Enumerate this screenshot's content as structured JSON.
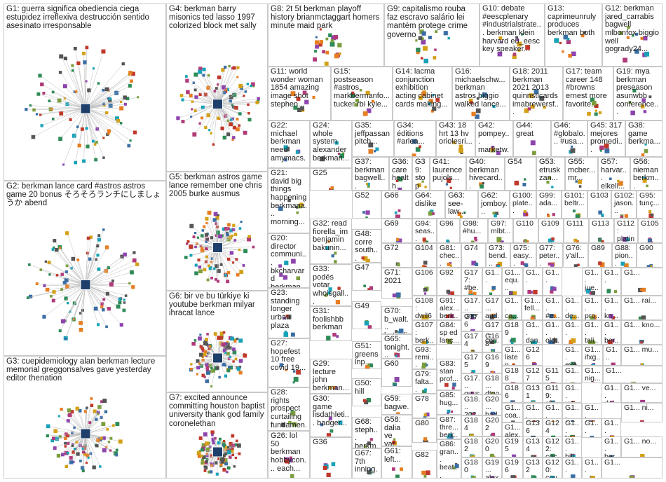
{
  "groups": [
    {
      "id": "G1",
      "label": "G1: guerra significa obediencia ciega estupidez irreflexiva destrucción sentido asesinato irresponsable"
    },
    {
      "id": "G2",
      "label": "G2: berkman lance card #astros astros game 20 bonus そろそろランチにしましょうか abend"
    },
    {
      "id": "G3",
      "label": "G3: cuepidemiology alan berkman lecture memorial greggonsalves gave yesterday editor thenation"
    },
    {
      "id": "G4",
      "label": "G4: berkman barry misonics ted lasso 1997 colorized block met sally"
    },
    {
      "id": "G5",
      "label": "G5: berkman astros game lance remember one chris 2005 burke ausmus"
    },
    {
      "id": "G6",
      "label": "G6: bir ve bu türkiye ki youtube berkman milyar ihracat lance"
    },
    {
      "id": "G7",
      "label": "G7: excited announce committing houston baptist university thank god family coronelethan"
    },
    {
      "id": "G8",
      "label": "G8: 2t 5t berkman playoff history brianmctaggart homers minute maid park"
    },
    {
      "id": "G9",
      "label": "G9: capitalismo rouba faz escravo salário lei mantém protege crime governo"
    },
    {
      "id": "G10",
      "label": "G10: debate #eescplenary #industrialstrate... berkman klein harvard eu_eesc key speaker..."
    },
    {
      "id": "G13",
      "label": "G13: caprimeunruly produces berkman both"
    },
    {
      "id": "G12",
      "label": "G12: berkman jared_carrabis bagwell mlbonfox biggio well gogrady24..."
    },
    {
      "id": "G11",
      "label": "G11: world wonder woman 1854 amazing image shot stephen..."
    },
    {
      "id": "G15",
      "label": "G15: postseason #astros markbermanfo... tucker rbi kyle..."
    },
    {
      "id": "G14",
      "label": "G14: lacma conjunction exhibition acting cabinet cards making..."
    },
    {
      "id": "G16",
      "label": "G16: michaelschw... berkman astros biggio walked lance..."
    },
    {
      "id": "G18",
      "label": "G18: 2011 berkman 2021 2013 quinnstlcards imabrewersf..."
    },
    {
      "id": "G17",
      "label": "G17: team career 148 #browns ernest more favorite..."
    },
    {
      "id": "G19",
      "label": "G19: mya berkman preseason asunwbb conference..."
    },
    {
      "id": "G22",
      "label": "G22: michael berkman need amymacs..."
    },
    {
      "id": "G24",
      "label": "G24: whole system alexander berkman..."
    },
    {
      "id": "G35",
      "label": "G35: jeffpassan pitch..."
    },
    {
      "id": "G34",
      "label": "G34: éditions #arlea..."
    },
    {
      "id": "G43",
      "label": "G43: 18 hrt 13 hv oriolesri..."
    },
    {
      "id": "G42",
      "label": "G42: pompey... marketw..."
    },
    {
      "id": "G44",
      "label": "G44: great"
    },
    {
      "id": "G46",
      "label": "G46: #globalo... #usa..."
    },
    {
      "id": "G45",
      "label": "G45: 317 mejores promedi..."
    },
    {
      "id": "G38",
      "label": "G38: game berkma..."
    },
    {
      "id": "G25",
      "label": "G25"
    },
    {
      "id": "G37",
      "label": "G37: berkman bagwell..."
    },
    {
      "id": "G39",
      "label": "G39: stop"
    },
    {
      "id": "G41",
      "label": "G41: laurence pujols..."
    },
    {
      "id": "G40",
      "label": "G40: berkman hivecard..."
    },
    {
      "id": "G54",
      "label": "G54"
    },
    {
      "id": "G53",
      "label": "G53: etrusk zan..."
    },
    {
      "id": "G55",
      "label": "G55: mcber... mr..."
    },
    {
      "id": "G57",
      "label": "G57: harvar... elkell..."
    },
    {
      "id": "G56",
      "label": "G56: nieman berkm..."
    },
    {
      "id": "G36",
      "label": "G36: care health..."
    },
    {
      "id": "G21",
      "label": "G21: david big things happening berkmana... morning..."
    },
    {
      "id": "G52",
      "label": "G52"
    },
    {
      "id": "G66",
      "label": "G66"
    },
    {
      "id": "G64",
      "label": "G64: dislike"
    },
    {
      "id": "G63",
      "label": "G63: see-law..."
    },
    {
      "id": "G62",
      "label": "G62: jomboy..."
    },
    {
      "id": "G100",
      "label": "G100: plate..."
    },
    {
      "id": "G99",
      "label": "G99: ada..."
    },
    {
      "id": "G101",
      "label": "G101: beltr..."
    },
    {
      "id": "G103",
      "label": "G103"
    },
    {
      "id": "G102",
      "label": "G102: jason..."
    },
    {
      "id": "G95",
      "label": "G95: tunç..."
    },
    {
      "id": "G32",
      "label": "G32: read fiorella_im benjamin bakunin..."
    },
    {
      "id": "G48",
      "label": "G48: corre south..."
    },
    {
      "id": "G69",
      "label": "G69"
    },
    {
      "id": "G94",
      "label": "G94: seas..."
    },
    {
      "id": "G96",
      "label": "G96"
    },
    {
      "id": "G98",
      "label": "G98: #hu..."
    },
    {
      "id": "G97",
      "label": "G97: mlbt..."
    },
    {
      "id": "G110",
      "label": "G110"
    },
    {
      "id": "G109",
      "label": "G109"
    },
    {
      "id": "G111",
      "label": "G111"
    },
    {
      "id": "G113",
      "label": "G113"
    },
    {
      "id": "G112",
      "label": "G112: platin..."
    },
    {
      "id": "G105",
      "label": "G105"
    },
    {
      "id": "G20",
      "label": "G20: director communi... bkcharvard berkman..."
    },
    {
      "id": "G72",
      "label": "G72"
    },
    {
      "id": "G104",
      "label": "G104"
    },
    {
      "id": "G81",
      "label": "G81: chec..."
    },
    {
      "id": "G74",
      "label": "G74"
    },
    {
      "id": "G73",
      "label": "G73: bend..."
    },
    {
      "id": "G75",
      "label": "G75: easy..."
    },
    {
      "id": "G77",
      "label": "G77: peter..."
    },
    {
      "id": "G76",
      "label": "G76: y'all..."
    },
    {
      "id": "G89",
      "label": "G89"
    },
    {
      "id": "G88",
      "label": "G88: pion..."
    },
    {
      "id": "G90",
      "label": "G90"
    },
    {
      "id": "G33",
      "label": "G33: podés votar whoisgall..."
    },
    {
      "id": "G47",
      "label": "G47"
    },
    {
      "id": "G71",
      "label": "G71: 2021"
    },
    {
      "id": "G106",
      "label": "G106"
    },
    {
      "id": "G92",
      "label": "G92"
    },
    {
      "id": "G177",
      "label": "G177: #be..."
    },
    {
      "id": "G1a",
      "label": "G1..."
    },
    {
      "id": "G1b",
      "label": "G1... equ..."
    },
    {
      "id": "G1c",
      "label": "G1..."
    },
    {
      "id": "G1d",
      "label": "G1..."
    },
    {
      "id": "G1e",
      "label": "G1... jue..."
    },
    {
      "id": "G1f",
      "label": "G1..."
    },
    {
      "id": "G1g",
      "label": "G1..."
    },
    {
      "id": "G23",
      "label": "G23: standing longer urban plaza"
    },
    {
      "id": "G108",
      "label": "G108: dwil6"
    },
    {
      "id": "G91",
      "label": "G91: alex... berk..."
    },
    {
      "id": "G17a",
      "label": "G17... one"
    },
    {
      "id": "G17b",
      "label": "G17... aud..."
    },
    {
      "id": "G1h",
      "label": "G1... ca..."
    },
    {
      "id": "G1i",
      "label": "G1... fell..."
    },
    {
      "id": "G1j",
      "label": "G1... #e..."
    },
    {
      "id": "G1k",
      "label": "G1... de..."
    },
    {
      "id": "G1l",
      "label": "G1... pro..."
    },
    {
      "id": "G1m",
      "label": "G1... kn..."
    },
    {
      "id": "G1n",
      "label": "G1... rai..."
    },
    {
      "id": "G31",
      "label": "G31: foolishbb berkman"
    },
    {
      "id": "G49",
      "label": "G49"
    },
    {
      "id": "G70",
      "label": "G70: b_walt... betonli..."
    },
    {
      "id": "G107",
      "label": "G107: berk..."
    },
    {
      "id": "G84",
      "label": "G84: sp ed lanc..."
    },
    {
      "id": "G176",
      "label": "G176"
    },
    {
      "id": "G17c",
      "label": "G17... con..."
    },
    {
      "id": "G189",
      "label": "G189"
    },
    {
      "id": "G1o",
      "label": "G1... dan..."
    },
    {
      "id": "G1p",
      "label": "G1... old..."
    },
    {
      "id": "G1q",
      "label": "G1..."
    },
    {
      "id": "G1r",
      "label": "G1... tali..."
    },
    {
      "id": "G1s",
      "label": "G1... ber..."
    },
    {
      "id": "G1t",
      "label": "G1... kno..."
    },
    {
      "id": "G27",
      "label": "G27: hopefest 10 free covid 19..."
    },
    {
      "id": "G65",
      "label": "G65: tonight..."
    },
    {
      "id": "G93",
      "label": "G93: remi..."
    },
    {
      "id": "G174",
      "label": "G174"
    },
    {
      "id": "G168",
      "label": "G168"
    },
    {
      "id": "G1u",
      "label": "G1... listen"
    },
    {
      "id": "G126",
      "label": "G126"
    },
    {
      "id": "G1v",
      "label": "G1... eye..."
    },
    {
      "id": "G1w",
      "label": "G1... ifxg..."
    },
    {
      "id": "G1x",
      "label": "G1..."
    },
    {
      "id": "G1y",
      "label": "G1... mu..."
    },
    {
      "id": "G51",
      "label": "G51: greens lnp..."
    },
    {
      "id": "G175",
      "label": "G175"
    },
    {
      "id": "G169",
      "label": "G169"
    },
    {
      "id": "G188",
      "label": "G188"
    },
    {
      "id": "G127",
      "label": "G127"
    },
    {
      "id": "G115",
      "label": "G115"
    },
    {
      "id": "G1z",
      "label": "G1..."
    },
    {
      "id": "G1aa",
      "label": "G1... nig..."
    },
    {
      "id": "G1ab",
      "label": "G1..."
    },
    {
      "id": "G29",
      "label": "G29: lecture john berkman..."
    },
    {
      "id": "G60",
      "label": "G60"
    },
    {
      "id": "G79",
      "label": "G79: falta..."
    },
    {
      "id": "G83",
      "label": "G83: stan prof..."
    },
    {
      "id": "G17d",
      "label": "G17... guys"
    },
    {
      "id": "G18a",
      "label": "G18... dtgo..."
    },
    {
      "id": "G186",
      "label": "G186"
    },
    {
      "id": "G131",
      "label": "G131"
    },
    {
      "id": "G119",
      "label": "G119: cf..."
    },
    {
      "id": "G1ac",
      "label": "G1... urt..."
    },
    {
      "id": "G1ad",
      "label": "G1... dal..."
    },
    {
      "id": "G1ae",
      "label": "G1... ve..."
    },
    {
      "id": "G28",
      "label": "G28: rights prospect curtailing fundamen..."
    },
    {
      "id": "G50",
      "label": "G50: hill"
    },
    {
      "id": "G59",
      "label": "G59: bagwe..."
    },
    {
      "id": "G78",
      "label": "G78"
    },
    {
      "id": "G85",
      "label": "G85: hug..."
    },
    {
      "id": "G18b",
      "label": "G18... 202..."
    },
    {
      "id": "G20a",
      "label": "G20... bad..."
    },
    {
      "id": "G1af",
      "label": "G1... coa..."
    },
    {
      "id": "G1ag",
      "label": "G1... right..."
    },
    {
      "id": "G1ah",
      "label": "G1..."
    },
    {
      "id": "G1ai",
      "label": "G1... cu..."
    },
    {
      "id": "G1aj",
      "label": "G1... sh..."
    },
    {
      "id": "G1ak",
      "label": "G1... ni..."
    },
    {
      "id": "G30",
      "label": "G30: game lisdathleti... badger..."
    },
    {
      "id": "G68",
      "label": "G68: steph... berkm..."
    },
    {
      "id": "G58",
      "label": "G58: dalia ve var..."
    },
    {
      "id": "G80",
      "label": "G80"
    },
    {
      "id": "G87",
      "label": "G87: thre... berk..."
    },
    {
      "id": "G184",
      "label": "G184"
    },
    {
      "id": "G202",
      "label": "G202"
    },
    {
      "id": "G1al",
      "label": "G1... alex..."
    },
    {
      "id": "G136",
      "label": "G136"
    },
    {
      "id": "G124",
      "label": "G124"
    },
    {
      "id": "G1am",
      "label": "G1... lov..."
    },
    {
      "id": "G1an",
      "label": "G1..."
    },
    {
      "id": "G1ao",
      "label": "G1..."
    },
    {
      "id": "G26",
      "label": "G26: lol 50 berkman hobbycon... each..."
    },
    {
      "id": "G36b",
      "label": "G36"
    },
    {
      "id": "G67",
      "label": "G67: 7th inning..."
    },
    {
      "id": "G61",
      "label": "G61: left..."
    },
    {
      "id": "G82",
      "label": "G82"
    },
    {
      "id": "G86",
      "label": "G86: gran... beat..."
    },
    {
      "id": "G182",
      "label": "G182"
    },
    {
      "id": "G200",
      "label": "G200"
    },
    {
      "id": "G195",
      "label": "G195"
    },
    {
      "id": "G134",
      "label": "G134"
    },
    {
      "id": "G122",
      "label": "G122: coco..."
    },
    {
      "id": "G1ap",
      "label": "G1... bill..."
    },
    {
      "id": "G1aq",
      "label": "G1... ber..."
    },
    {
      "id": "G1ar",
      "label": "G1... no..."
    },
    {
      "id": "G180",
      "label": "G180"
    },
    {
      "id": "G19a",
      "label": "G19... alex..."
    },
    {
      "id": "G196",
      "label": "G196"
    },
    {
      "id": "G132",
      "label": "G132"
    },
    {
      "id": "G120",
      "label": "G120: cough"
    },
    {
      "id": "G1as",
      "label": "G1..."
    },
    {
      "id": "G1at",
      "label": "G1..."
    },
    {
      "id": "G1au",
      "label": "G1..."
    }
  ]
}
